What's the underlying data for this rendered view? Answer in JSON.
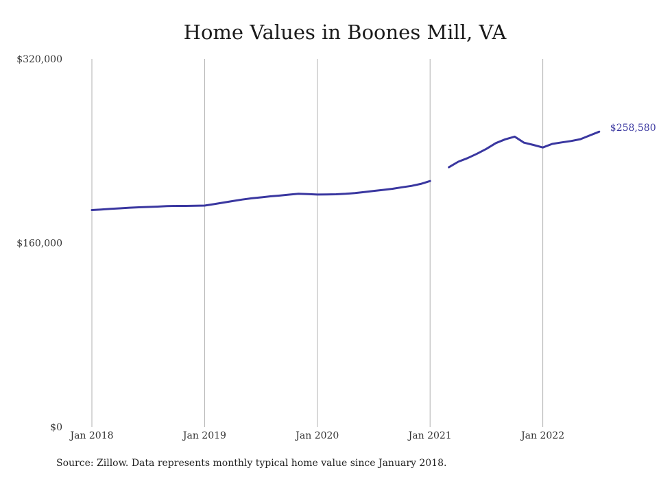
{
  "chart_data": {
    "type": "line",
    "title": "Home Values in Boones Mill, VA",
    "xlabel": "",
    "ylabel": "",
    "ylim": [
      0,
      320000
    ],
    "y_ticks": [
      {
        "value": 0,
        "label": "$0"
      },
      {
        "value": 160000,
        "label": "$160,000"
      },
      {
        "value": 320000,
        "label": "$320,000"
      }
    ],
    "x_ticks": [
      {
        "value": "2018-01",
        "label": "Jan 2018"
      },
      {
        "value": "2019-01",
        "label": "Jan 2019"
      },
      {
        "value": "2020-01",
        "label": "Jan 2020"
      },
      {
        "value": "2021-01",
        "label": "Jan 2021"
      },
      {
        "value": "2022-01",
        "label": "Jan 2022"
      }
    ],
    "grid": "vertical",
    "line_color": "#3a37a0",
    "series": [
      {
        "segments": [
          {
            "x": [
              "2018-01",
              "2018-02",
              "2018-03",
              "2018-04",
              "2018-05",
              "2018-06",
              "2018-07",
              "2018-08",
              "2018-09",
              "2018-10",
              "2018-11",
              "2018-12",
              "2019-01",
              "2019-02",
              "2019-03",
              "2019-04",
              "2019-05",
              "2019-06",
              "2019-07",
              "2019-08",
              "2019-09",
              "2019-10",
              "2019-11",
              "2019-12",
              "2020-01",
              "2020-02",
              "2020-03",
              "2020-04",
              "2020-05",
              "2020-06",
              "2020-07",
              "2020-08",
              "2020-09",
              "2020-10",
              "2020-11",
              "2020-12",
              "2021-01"
            ],
            "y": [
              188600,
              189100,
              189600,
              190100,
              190600,
              191000,
              191300,
              191600,
              192000,
              192200,
              192200,
              192300,
              192500,
              193700,
              195100,
              196400,
              197700,
              198800,
              199600,
              200500,
              201200,
              202000,
              202800,
              202500,
              202100,
              202200,
              202300,
              202700,
              203400,
              204300,
              205200,
              206100,
              207100,
              208400,
              209600,
              211300,
              213800
            ]
          },
          {
            "x": [
              "2021-03",
              "2021-04",
              "2021-05",
              "2021-06",
              "2021-07",
              "2021-08",
              "2021-09",
              "2021-10",
              "2021-11",
              "2021-12",
              "2022-01",
              "2022-02",
              "2022-03",
              "2022-04",
              "2022-05",
              "2022-06",
              "2022-07"
            ],
            "y": [
              225800,
              230600,
              233800,
              237600,
              241800,
              246800,
              250100,
              252400,
              247200,
              245200,
              243000,
              246100,
              247400,
              248600,
              250200,
              253500,
              256700
            ]
          }
        ]
      }
    ],
    "end_label": {
      "value": 258580,
      "label": "$258,580"
    }
  },
  "footer": {
    "source": "Source: Zillow. Data represents monthly typical home value since January 2018."
  }
}
